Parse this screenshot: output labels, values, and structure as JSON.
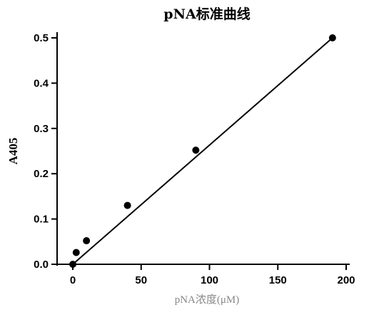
{
  "chart_data": {
    "type": "scatter",
    "title": "pNA标准曲线",
    "xlabel": "pNA浓度(μM)",
    "ylabel": "A405",
    "xlim": [
      0,
      200
    ],
    "ylim": [
      0,
      0.5
    ],
    "x_ticks": [
      "0",
      "50",
      "100",
      "150",
      "200"
    ],
    "y_ticks": [
      "0.0",
      "0.1",
      "0.2",
      "0.3",
      "0.4",
      "0.5"
    ],
    "grid": false,
    "legend": "none",
    "series": [
      {
        "x": [
          0,
          2.5,
          10,
          40,
          90,
          190
        ],
        "y": [
          0.0,
          0.026,
          0.052,
          0.13,
          0.252,
          0.5
        ]
      }
    ],
    "fit_line": {
      "x": [
        0,
        190
      ],
      "y": [
        0.0,
        0.5
      ]
    }
  }
}
